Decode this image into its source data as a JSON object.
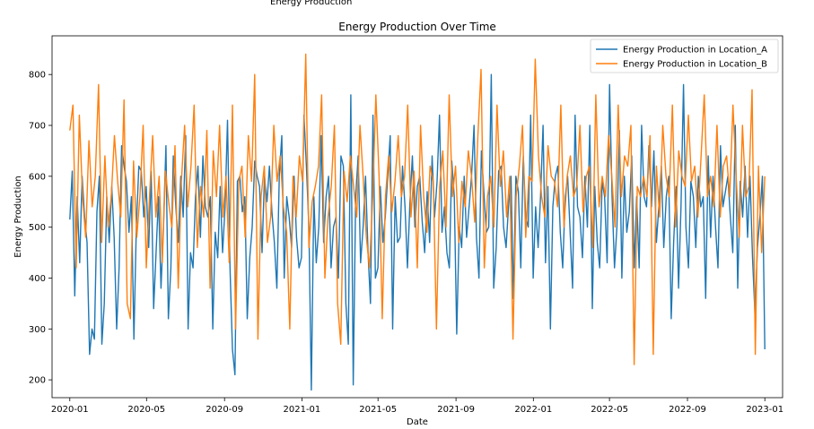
{
  "window_label": "Energy Production",
  "chart_data": {
    "type": "line",
    "title": "Energy Production Over Time",
    "xlabel": "Date",
    "ylabel": "Energy Production",
    "x_range": [
      "2019-12-04",
      "2023-01-29"
    ],
    "ylim": [
      165,
      876
    ],
    "x_ticks": [
      "2020-01",
      "2020-05",
      "2020-09",
      "2021-01",
      "2021-05",
      "2021-09",
      "2022-01",
      "2022-05",
      "2022-09",
      "2023-01"
    ],
    "y_ticks": [
      200,
      300,
      400,
      500,
      600,
      700,
      800
    ],
    "x_start": "2020-01-01",
    "x_end": "2023-01-01",
    "legend_position": "top-right",
    "grid": false,
    "series": [
      {
        "name": "Energy Production in Location_A",
        "color": "#1f77b4",
        "values": [
          515,
          610,
          365,
          560,
          430,
          600,
          520,
          470,
          250,
          300,
          280,
          530,
          600,
          270,
          350,
          560,
          470,
          580,
          480,
          300,
          420,
          660,
          620,
          590,
          490,
          560,
          280,
          500,
          620,
          610,
          520,
          580,
          460,
          610,
          340,
          450,
          560,
          380,
          500,
          660,
          320,
          420,
          640,
          540,
          470,
          600,
          520,
          680,
          300,
          450,
          420,
          560,
          620,
          480,
          640,
          540,
          520,
          560,
          300,
          490,
          440,
          580,
          450,
          540,
          710,
          420,
          260,
          210,
          590,
          600,
          530,
          560,
          320,
          440,
          500,
          630,
          600,
          580,
          450,
          600,
          550,
          620,
          530,
          470,
          380,
          600,
          680,
          400,
          560,
          520,
          460,
          600,
          480,
          420,
          440,
          720,
          620,
          500,
          180,
          560,
          430,
          500,
          680,
          470,
          560,
          600,
          420,
          500,
          520,
          400,
          640,
          620,
          350,
          270,
          760,
          190,
          560,
          640,
          430,
          500,
          600,
          450,
          350,
          720,
          400,
          420,
          580,
          470,
          520,
          600,
          680,
          300,
          560,
          470,
          480,
          620,
          540,
          420,
          550,
          640,
          500,
          580,
          600,
          510,
          450,
          570,
          470,
          640,
          520,
          590,
          720,
          490,
          540,
          450,
          420,
          630,
          560,
          290,
          500,
          460,
          600,
          480,
          540,
          600,
          700,
          480,
          400,
          650,
          570,
          490,
          500,
          800,
          380,
          460,
          610,
          620,
          500,
          460,
          540,
          600,
          360,
          600,
          570,
          420,
          640,
          520,
          500,
          720,
          400,
          540,
          460,
          560,
          700,
          430,
          580,
          300,
          540,
          600,
          620,
          490,
          420,
          560,
          600,
          490,
          380,
          720,
          540,
          520,
          440,
          600,
          500,
          700,
          340,
          580,
          470,
          420,
          590,
          560,
          430,
          780,
          560,
          420,
          500,
          690,
          400,
          600,
          490,
          530,
          640,
          420,
          560,
          420,
          700,
          560,
          540,
          660,
          540,
          650,
          470,
          540,
          620,
          460,
          560,
          600,
          320,
          470,
          580,
          380,
          540,
          780,
          500,
          420,
          590,
          560,
          460,
          600,
          540,
          560,
          360,
          640,
          480,
          600,
          500,
          420,
          660,
          540,
          570,
          600,
          520,
          450,
          700,
          380,
          590,
          520,
          620,
          480,
          600,
          440,
          330,
          460,
          520,
          600,
          260
        ]
      },
      {
        "name": "Energy Production in Location_B",
        "color": "#ff7f0e",
        "values": [
          690,
          740,
          420,
          720,
          560,
          480,
          670,
          540,
          600,
          780,
          470,
          640,
          500,
          560,
          680,
          590,
          520,
          750,
          350,
          320,
          630,
          480,
          560,
          700,
          420,
          560,
          680,
          520,
          600,
          430,
          610,
          550,
          500,
          660,
          380,
          590,
          700,
          540,
          620,
          740,
          460,
          580,
          520,
          690,
          380,
          650,
          560,
          700,
          520,
          600,
          430,
          740,
          300,
          590,
          620,
          480,
          680,
          590,
          800,
          280,
          560,
          620,
          470,
          520,
          700,
          590,
          640,
          540,
          490,
          300,
          600,
          520,
          640,
          590,
          840,
          460,
          550,
          580,
          620,
          760,
          400,
          520,
          580,
          700,
          350,
          270,
          610,
          550,
          640,
          580,
          520,
          700,
          600,
          480,
          420,
          560,
          760,
          600,
          320,
          560,
          640,
          530,
          590,
          680,
          560,
          600,
          740,
          520,
          610,
          420,
          700,
          560,
          490,
          620,
          590,
          300,
          580,
          650,
          500,
          760,
          560,
          620,
          470,
          590,
          540,
          650,
          600,
          510,
          680,
          810,
          420,
          560,
          600,
          500,
          740,
          580,
          650,
          520,
          600,
          280,
          560,
          620,
          700,
          480,
          600,
          590,
          830,
          640,
          560,
          520,
          660,
          600,
          590,
          540,
          740,
          500,
          600,
          640,
          560,
          580,
          700,
          530,
          600,
          620,
          460,
          760,
          540,
          600,
          560,
          680,
          600,
          500,
          740,
          560,
          640,
          620,
          700,
          230,
          580,
          560,
          600,
          560,
          680,
          250,
          620,
          520,
          700,
          600,
          560,
          740,
          500,
          650,
          600,
          580,
          720,
          590,
          620,
          520,
          640,
          760,
          560,
          600,
          540,
          700,
          520,
          620,
          640,
          560,
          740,
          600,
          480,
          700,
          560,
          580,
          770,
          250,
          620,
          450,
          600
        ]
      }
    ]
  }
}
